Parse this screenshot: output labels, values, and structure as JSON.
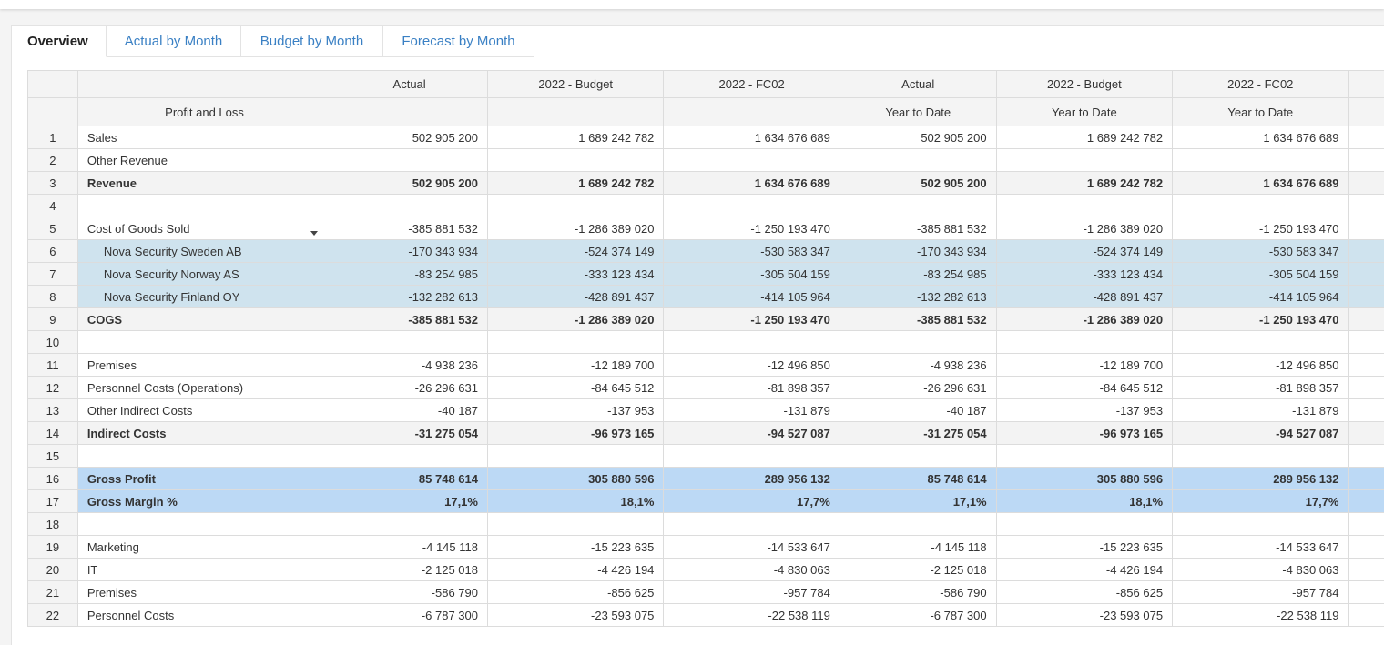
{
  "tabs": [
    {
      "label": "Overview",
      "active": true
    },
    {
      "label": "Actual by Month",
      "active": false
    },
    {
      "label": "Budget by Month",
      "active": false
    },
    {
      "label": "Forecast by Month",
      "active": false
    }
  ],
  "header": {
    "row1": [
      "Actual",
      "2022 - Budget",
      "2022 - FC02",
      "Actual",
      "2022 - Budget",
      "2022 - FC02"
    ],
    "title": "Profit and Loss",
    "row2": [
      "",
      "",
      "",
      "Year to Date",
      "Year to Date",
      "Year to Date"
    ]
  },
  "rows": [
    {
      "n": "1",
      "label": "Sales",
      "type": "normal",
      "values": [
        "502 905 200",
        "1 689 242 782",
        "1 634 676 689",
        "502 905 200",
        "1 689 242 782",
        "1 634 676 689"
      ]
    },
    {
      "n": "2",
      "label": "Other Revenue",
      "type": "normal",
      "values": [
        "",
        "",
        "",
        "",
        "",
        ""
      ]
    },
    {
      "n": "3",
      "label": "Revenue",
      "type": "bold",
      "values": [
        "502 905 200",
        "1 689 242 782",
        "1 634 676 689",
        "502 905 200",
        "1 689 242 782",
        "1 634 676 689"
      ]
    },
    {
      "n": "4",
      "label": "",
      "type": "normal",
      "values": [
        "",
        "",
        "",
        "",
        "",
        ""
      ]
    },
    {
      "n": "5",
      "label": "Cost of Goods Sold",
      "type": "expandable",
      "values": [
        "-385 881 532",
        "-1 286 389 020",
        "-1 250 193 470",
        "-385 881 532",
        "-1 286 389 020",
        "-1 250 193 470"
      ]
    },
    {
      "n": "6",
      "label": "Nova Security Sweden AB",
      "type": "sub",
      "values": [
        "-170 343 934",
        "-524 374 149",
        "-530 583 347",
        "-170 343 934",
        "-524 374 149",
        "-530 583 347"
      ]
    },
    {
      "n": "7",
      "label": "Nova Security Norway AS",
      "type": "sub",
      "values": [
        "-83 254 985",
        "-333 123 434",
        "-305 504 159",
        "-83 254 985",
        "-333 123 434",
        "-305 504 159"
      ]
    },
    {
      "n": "8",
      "label": "Nova Security Finland OY",
      "type": "sub",
      "values": [
        "-132 282 613",
        "-428 891 437",
        "-414 105 964",
        "-132 282 613",
        "-428 891 437",
        "-414 105 964"
      ]
    },
    {
      "n": "9",
      "label": "COGS",
      "type": "bold",
      "values": [
        "-385 881 532",
        "-1 286 389 020",
        "-1 250 193 470",
        "-385 881 532",
        "-1 286 389 020",
        "-1 250 193 470"
      ]
    },
    {
      "n": "10",
      "label": "",
      "type": "normal",
      "values": [
        "",
        "",
        "",
        "",
        "",
        ""
      ]
    },
    {
      "n": "11",
      "label": "Premises",
      "type": "normal",
      "values": [
        "-4 938 236",
        "-12 189 700",
        "-12 496 850",
        "-4 938 236",
        "-12 189 700",
        "-12 496 850"
      ]
    },
    {
      "n": "12",
      "label": "Personnel Costs (Operations)",
      "type": "normal",
      "values": [
        "-26 296 631",
        "-84 645 512",
        "-81 898 357",
        "-26 296 631",
        "-84 645 512",
        "-81 898 357"
      ]
    },
    {
      "n": "13",
      "label": "Other Indirect Costs",
      "type": "normal",
      "values": [
        "-40 187",
        "-137 953",
        "-131 879",
        "-40 187",
        "-137 953",
        "-131 879"
      ]
    },
    {
      "n": "14",
      "label": "Indirect Costs",
      "type": "bold",
      "values": [
        "-31 275 054",
        "-96 973 165",
        "-94 527 087",
        "-31 275 054",
        "-96 973 165",
        "-94 527 087"
      ]
    },
    {
      "n": "15",
      "label": "",
      "type": "normal",
      "values": [
        "",
        "",
        "",
        "",
        "",
        ""
      ]
    },
    {
      "n": "16",
      "label": "Gross Profit",
      "type": "hl",
      "values": [
        "85 748 614",
        "305 880 596",
        "289 956 132",
        "85 748 614",
        "305 880 596",
        "289 956 132"
      ]
    },
    {
      "n": "17",
      "label": "Gross Margin %",
      "type": "hl",
      "values": [
        "17,1%",
        "18,1%",
        "17,7%",
        "17,1%",
        "18,1%",
        "17,7%"
      ]
    },
    {
      "n": "18",
      "label": "",
      "type": "normal",
      "values": [
        "",
        "",
        "",
        "",
        "",
        ""
      ]
    },
    {
      "n": "19",
      "label": "Marketing",
      "type": "normal",
      "values": [
        "-4 145 118",
        "-15 223 635",
        "-14 533 647",
        "-4 145 118",
        "-15 223 635",
        "-14 533 647"
      ]
    },
    {
      "n": "20",
      "label": "IT",
      "type": "normal",
      "values": [
        "-2 125 018",
        "-4 426 194",
        "-4 830 063",
        "-2 125 018",
        "-4 426 194",
        "-4 830 063"
      ]
    },
    {
      "n": "21",
      "label": "Premises",
      "type": "normal",
      "values": [
        "-586 790",
        "-856 625",
        "-957 784",
        "-586 790",
        "-856 625",
        "-957 784"
      ]
    },
    {
      "n": "22",
      "label": "Personnel Costs",
      "type": "normal",
      "values": [
        "-6 787 300",
        "-23 593 075",
        "-22 538 119",
        "-6 787 300",
        "-23 593 075",
        "-22 538 119"
      ]
    }
  ],
  "colors": {
    "tab_link": "#3a80c4",
    "header_bg": "#f4f4f4",
    "sub_row_bg": "#cfe3ee",
    "highlight_row_bg": "#bcd9f5"
  },
  "icons": {
    "expand": "caret-down-icon"
  }
}
